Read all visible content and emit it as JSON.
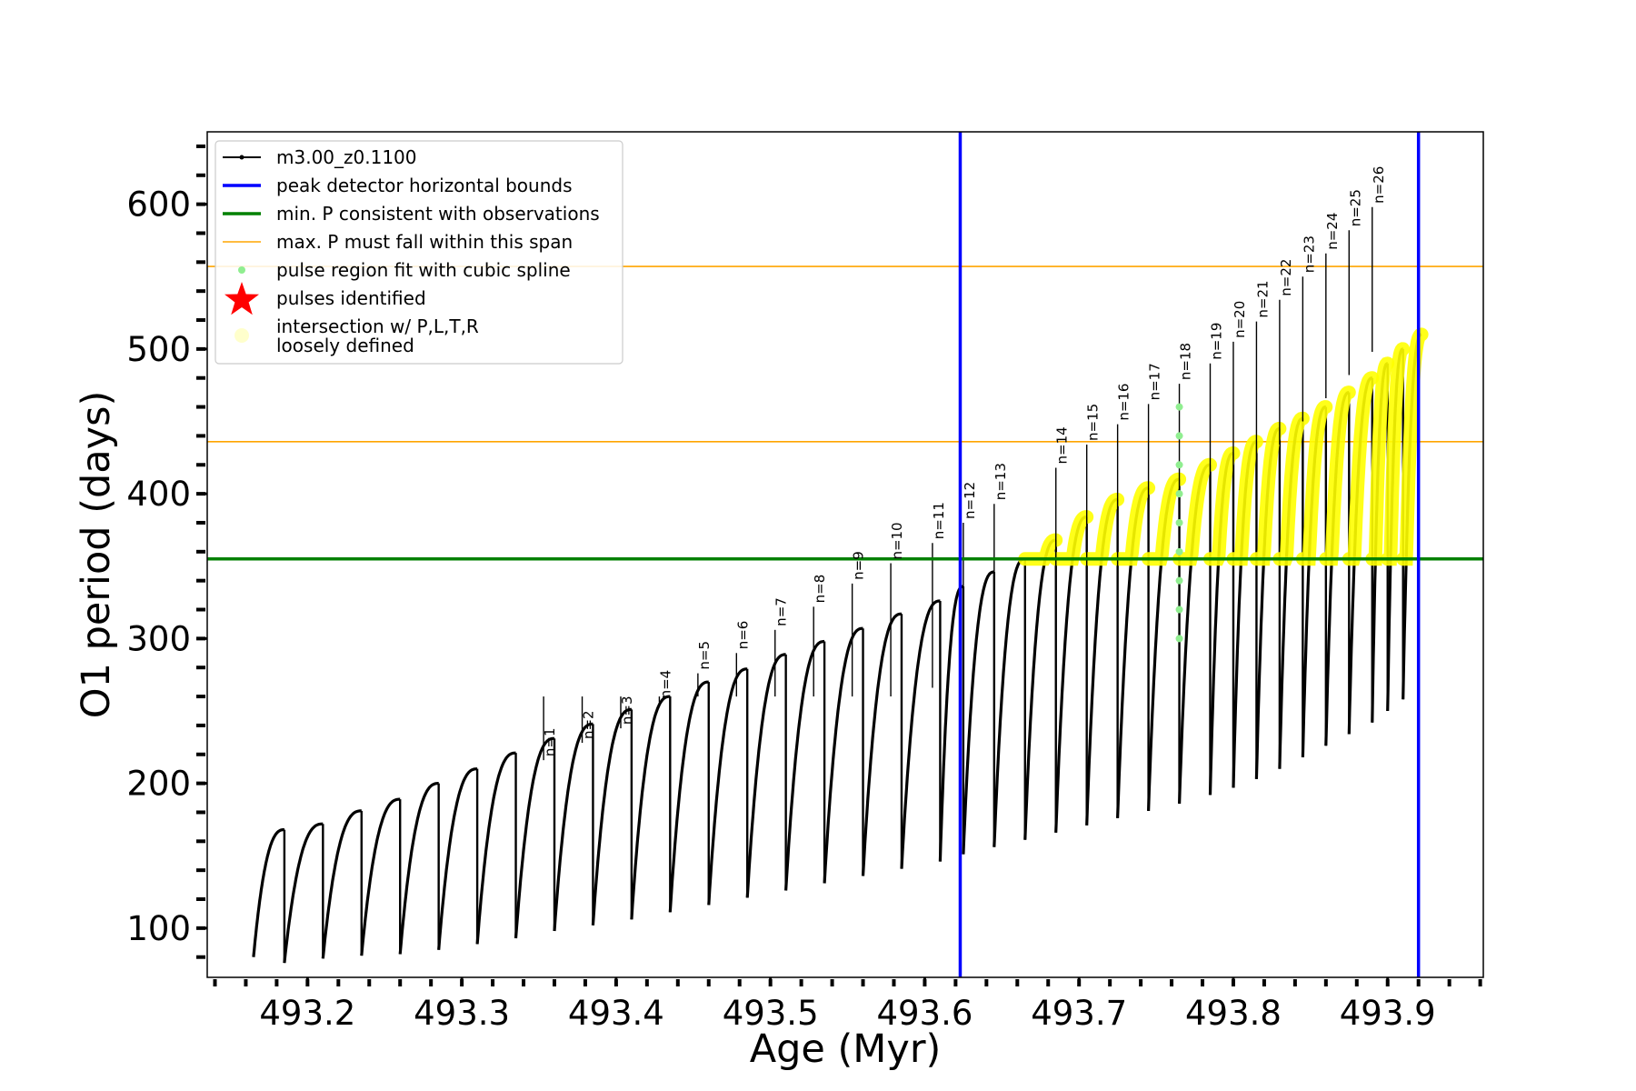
{
  "chart_data": {
    "type": "line",
    "xlabel": "Age (Myr)",
    "ylabel": "O1 period (days)",
    "xlim": [
      493.135,
      493.962
    ],
    "ylim": [
      66,
      650
    ],
    "x_ticks": [
      493.2,
      493.3,
      493.4,
      493.5,
      493.6,
      493.7,
      493.8,
      493.9
    ],
    "x_tick_labels": [
      "493.2",
      "493.3",
      "493.4",
      "493.5",
      "493.6",
      "493.7",
      "493.8",
      "493.9"
    ],
    "y_ticks": [
      100,
      200,
      300,
      400,
      500,
      600
    ],
    "y_tick_labels": [
      "100",
      "200",
      "300",
      "400",
      "500",
      "600"
    ],
    "legend_position": "upper-left",
    "legend": [
      {
        "label": "m3.00_z0.1100",
        "kind": "line-marker",
        "color": "#000000"
      },
      {
        "label": "peak detector horizontal bounds",
        "kind": "line",
        "color": "#0000ff"
      },
      {
        "label": "min. P consistent with observations",
        "kind": "line",
        "color": "#008000"
      },
      {
        "label": "max. P must fall within this span",
        "kind": "line",
        "color": "#ffa500"
      },
      {
        "label": "pulse region fit with cubic spline",
        "kind": "dot",
        "color": "#90ee90"
      },
      {
        "label": "pulses identified",
        "kind": "star",
        "color": "#ff0000"
      },
      {
        "label": "intersection w/ P,L,T,R\nloosely defined",
        "kind": "big-dot",
        "color": "#ffffcc"
      }
    ],
    "vertical_bounds": [
      493.623,
      493.92
    ],
    "min_period": 355,
    "max_period_span": [
      436,
      557
    ],
    "series_name": "m3.00_z0.1100",
    "cycles": [
      {
        "start": 493.165,
        "end": 493.185,
        "low": 80,
        "high": 168
      },
      {
        "start": 493.185,
        "end": 493.21,
        "low": 76,
        "high": 172
      },
      {
        "start": 493.21,
        "end": 493.235,
        "low": 79,
        "high": 181
      },
      {
        "start": 493.235,
        "end": 493.26,
        "low": 81,
        "high": 189
      },
      {
        "start": 493.26,
        "end": 493.285,
        "low": 82,
        "high": 200
      },
      {
        "start": 493.285,
        "end": 493.31,
        "low": 85,
        "high": 210
      },
      {
        "start": 493.31,
        "end": 493.335,
        "low": 89,
        "high": 221
      },
      {
        "start": 493.335,
        "end": 493.36,
        "low": 93,
        "high": 231
      },
      {
        "start": 493.36,
        "end": 493.385,
        "low": 98,
        "high": 241
      },
      {
        "start": 493.385,
        "end": 493.41,
        "low": 102,
        "high": 251
      },
      {
        "start": 493.41,
        "end": 493.435,
        "low": 106,
        "high": 260
      },
      {
        "start": 493.435,
        "end": 493.46,
        "low": 111,
        "high": 270
      },
      {
        "start": 493.46,
        "end": 493.485,
        "low": 116,
        "high": 279
      },
      {
        "start": 493.485,
        "end": 493.51,
        "low": 121,
        "high": 289
      },
      {
        "start": 493.51,
        "end": 493.535,
        "low": 126,
        "high": 298
      },
      {
        "start": 493.535,
        "end": 493.56,
        "low": 131,
        "high": 307
      },
      {
        "start": 493.56,
        "end": 493.585,
        "low": 136,
        "high": 317
      },
      {
        "start": 493.585,
        "end": 493.61,
        "low": 141,
        "high": 326
      },
      {
        "start": 493.61,
        "end": 493.625,
        "low": 146,
        "high": 336
      },
      {
        "start": 493.625,
        "end": 493.645,
        "low": 151,
        "high": 346
      },
      {
        "start": 493.645,
        "end": 493.665,
        "low": 156,
        "high": 355
      },
      {
        "start": 493.665,
        "end": 493.685,
        "low": 161,
        "high": 368
      },
      {
        "start": 493.685,
        "end": 493.705,
        "low": 166,
        "high": 384
      },
      {
        "start": 493.705,
        "end": 493.725,
        "low": 171,
        "high": 396
      },
      {
        "start": 493.725,
        "end": 493.745,
        "low": 176,
        "high": 404
      },
      {
        "start": 493.745,
        "end": 493.765,
        "low": 181,
        "high": 410
      },
      {
        "start": 493.765,
        "end": 493.785,
        "low": 186,
        "high": 420
      },
      {
        "start": 493.785,
        "end": 493.8,
        "low": 192,
        "high": 428
      },
      {
        "start": 493.8,
        "end": 493.815,
        "low": 197,
        "high": 436
      },
      {
        "start": 493.815,
        "end": 493.83,
        "low": 203,
        "high": 445
      },
      {
        "start": 493.83,
        "end": 493.845,
        "low": 210,
        "high": 452
      },
      {
        "start": 493.845,
        "end": 493.86,
        "low": 218,
        "high": 460
      },
      {
        "start": 493.86,
        "end": 493.875,
        "low": 226,
        "high": 470
      },
      {
        "start": 493.875,
        "end": 493.89,
        "low": 234,
        "high": 480
      },
      {
        "start": 493.89,
        "end": 493.9,
        "low": 242,
        "high": 490
      },
      {
        "start": 493.9,
        "end": 493.91,
        "low": 250,
        "high": 500
      },
      {
        "start": 493.91,
        "end": 493.922,
        "low": 258,
        "high": 510
      }
    ],
    "pulses": [
      {
        "label": "n=1",
        "x": 493.353,
        "peak": 216
      },
      {
        "label": "n=2",
        "x": 493.378,
        "peak": 228
      },
      {
        "label": "n=3",
        "x": 493.403,
        "peak": 238
      },
      {
        "label": "n=4",
        "x": 493.428,
        "peak": 256
      },
      {
        "label": "n=5",
        "x": 493.453,
        "peak": 276
      },
      {
        "label": "n=6",
        "x": 493.478,
        "peak": 290
      },
      {
        "label": "n=7",
        "x": 493.503,
        "peak": 306
      },
      {
        "label": "n=8",
        "x": 493.528,
        "peak": 322
      },
      {
        "label": "n=9",
        "x": 493.553,
        "peak": 338
      },
      {
        "label": "n=10",
        "x": 493.578,
        "peak": 352
      },
      {
        "label": "n=11",
        "x": 493.605,
        "peak": 366
      },
      {
        "label": "n=12",
        "x": 493.625,
        "peak": 380
      },
      {
        "label": "n=13",
        "x": 493.645,
        "peak": 393
      },
      {
        "label": "n=14",
        "x": 493.685,
        "peak": 418
      },
      {
        "label": "n=15",
        "x": 493.705,
        "peak": 434
      },
      {
        "label": "n=16",
        "x": 493.725,
        "peak": 448
      },
      {
        "label": "n=17",
        "x": 493.745,
        "peak": 462
      },
      {
        "label": "n=18",
        "x": 493.765,
        "peak": 476
      },
      {
        "label": "n=19",
        "x": 493.785,
        "peak": 490
      },
      {
        "label": "n=20",
        "x": 493.8,
        "peak": 505
      },
      {
        "label": "n=21",
        "x": 493.815,
        "peak": 519
      },
      {
        "label": "n=22",
        "x": 493.83,
        "peak": 534
      },
      {
        "label": "n=23",
        "x": 493.845,
        "peak": 550
      },
      {
        "label": "n=24",
        "x": 493.86,
        "peak": 566
      },
      {
        "label": "n=25",
        "x": 493.875,
        "peak": 582
      },
      {
        "label": "n=26",
        "x": 493.89,
        "peak": 598
      }
    ]
  }
}
